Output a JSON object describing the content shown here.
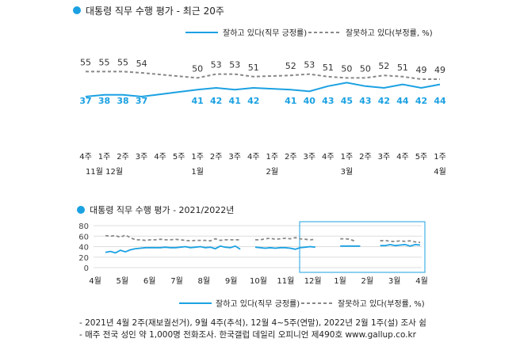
{
  "colors": {
    "approve": "#1ba1e2",
    "disapprove": "#888888",
    "box": "#1ba1e2",
    "grid": "#dddddd",
    "dot": "#1ba1e2"
  },
  "chart_data": [
    {
      "type": "line",
      "title": "대통령 직무 수행 평가 - 최근 20주",
      "legend": {
        "position": "top",
        "entries": [
          "잘하고 있다(직무 긍정률)",
          "잘못하고 있다(부정률, %)"
        ]
      },
      "grid": false,
      "x": [
        "4주",
        "1주",
        "2주",
        "3주",
        "4주",
        "5주",
        "1주",
        "2주",
        "3주",
        "4주",
        "1주",
        "2주",
        "3주",
        "4주",
        "1주",
        "2주",
        "3주",
        "4주",
        "5주",
        "1주"
      ],
      "month_labels": [
        {
          "index": 1,
          "label": "11월 12월"
        },
        {
          "index": 6,
          "label": "1월"
        },
        {
          "index": 10,
          "label": "2월"
        },
        {
          "index": 14,
          "label": "3월"
        },
        {
          "index": 19,
          "label": "4월"
        }
      ],
      "series": [
        {
          "name": "잘하고 있다(직무 긍정률)",
          "style": "solid",
          "values": [
            37,
            38,
            38,
            37,
            null,
            null,
            41,
            42,
            41,
            42,
            null,
            41,
            40,
            43,
            45,
            43,
            42,
            44,
            42,
            44
          ]
        },
        {
          "name": "잘못하고 있다(부정률, %)",
          "style": "dashed",
          "values": [
            55,
            55,
            55,
            54,
            null,
            null,
            50,
            53,
            53,
            51,
            null,
            52,
            53,
            51,
            50,
            50,
            52,
            51,
            49,
            49
          ]
        }
      ]
    },
    {
      "type": "line",
      "title": "대통령 직무 수행 평가 - 2021/2022년",
      "legend": {
        "position": "bottom",
        "entries": [
          "잘하고 있다(직무 긍정률)",
          "잘못하고 있다(부정률, %)"
        ]
      },
      "grid": true,
      "yticks": [
        0,
        20,
        40,
        60,
        80
      ],
      "ylim": [
        0,
        80
      ],
      "x_month_labels": [
        "4월",
        "5월",
        "6월",
        "7월",
        "8월",
        "9월",
        "10월",
        "11월",
        "12월",
        "1월",
        "2월",
        "3월",
        "4월"
      ],
      "highlight": "최근 20주",
      "series": [
        {
          "name": "잘하고 있다(직무 긍정률)",
          "style": "solid",
          "values": [
            29,
            31,
            28,
            33,
            30,
            34,
            36,
            37,
            38,
            38,
            38,
            38,
            39,
            38,
            38,
            39,
            40,
            38,
            39,
            40,
            38,
            39,
            36,
            41,
            39,
            38,
            41,
            35,
            null,
            null,
            39,
            38,
            37,
            38,
            37,
            38,
            38,
            37,
            35,
            38,
            39,
            40,
            39,
            null,
            null,
            null,
            null,
            41,
            41,
            41,
            41,
            41,
            null,
            40,
            null,
            42,
            42,
            44,
            42,
            43,
            44,
            41,
            44,
            43
          ]
        },
        {
          "name": "잘못하고 있다(부정률, %)",
          "style": "dashed",
          "values": [
            61,
            60,
            61,
            58,
            62,
            57,
            53,
            53,
            52,
            53,
            53,
            54,
            53,
            53,
            54,
            53,
            52,
            51,
            52,
            52,
            52,
            51,
            55,
            52,
            53,
            53,
            53,
            53,
            null,
            null,
            53,
            53,
            55,
            56,
            54,
            55,
            56,
            55,
            57,
            55,
            54,
            53,
            54,
            null,
            null,
            null,
            null,
            55,
            55,
            54,
            50,
            null,
            null,
            51,
            null,
            51,
            52,
            50,
            50,
            51,
            50,
            51,
            49,
            48
          ]
        }
      ]
    }
  ],
  "notes": [
    "- 2021년 4월 2주(재보궐선거), 9월 4주(추석), 12월 4~5주(연말), 2022년 2월 1주(설) 조사 쉼",
    "- 매주 전국 성인 약 1,000명 전화조사. 한국갤럽 데일리 오피니언 제490호 www.gallup.co.kr"
  ]
}
